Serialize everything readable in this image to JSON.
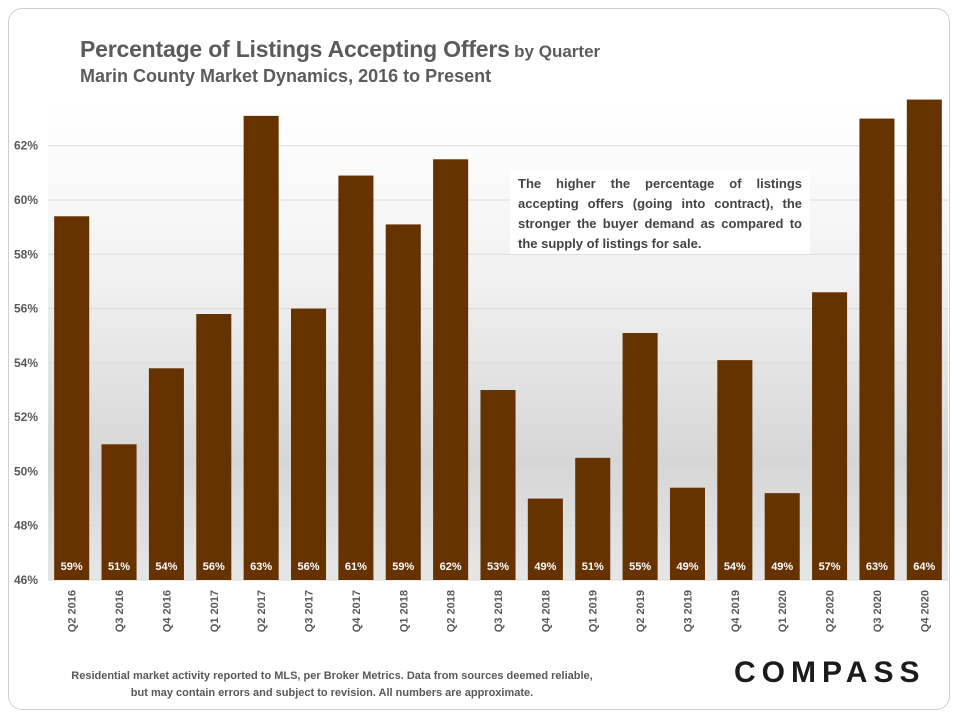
{
  "header": {
    "title": "Percentage of Listings Accepting Offers",
    "title_suffix": "by Quarter",
    "subtitle": "Marin County Market Dynamics,  2016 to Present"
  },
  "annotation": {
    "text": "The higher the percentage of listings accepting offers (going into contract), the stronger the buyer demand as compared to the supply of listings for sale."
  },
  "footer": {
    "note": "Residential market activity reported to MLS, per Broker Metrics.  Data from sources deemed reliable, but may contain errors and subject to revision.  All numbers are approximate.",
    "logo": "COMPASS"
  },
  "colors": {
    "bar": "#663300",
    "grid": "#d9d9d9",
    "axis_text": "#595959",
    "label_text": "#ffffff"
  },
  "chart_data": {
    "type": "bar",
    "title": "Percentage of Listings Accepting Offers by Quarter",
    "subtitle": "Marin County Market Dynamics,  2016 to Present",
    "xlabel": "",
    "ylabel": "",
    "ylim": [
      46,
      63.5
    ],
    "yticks": [
      "46%",
      "48%",
      "50%",
      "52%",
      "54%",
      "56%",
      "58%",
      "60%",
      "62%"
    ],
    "ytick_values": [
      46,
      48,
      50,
      52,
      54,
      56,
      58,
      60,
      62
    ],
    "grid": true,
    "legend": "none",
    "categories": [
      "Q2 2016",
      "Q3 2016",
      "Q4 2016",
      "Q1 2017",
      "Q2 2017",
      "Q3 2017",
      "Q4 2017",
      "Q1 2018",
      "Q2 2018",
      "Q3 2018",
      "Q4 2018",
      "Q1 2019",
      "Q2 2019",
      "Q3 2019",
      "Q4 2019",
      "Q1 2020",
      "Q2 2020",
      "Q3 2020",
      "Q4 2020"
    ],
    "values": [
      59.4,
      51.0,
      53.8,
      55.8,
      63.1,
      56.0,
      60.9,
      59.1,
      61.5,
      53.0,
      49.0,
      50.5,
      55.1,
      49.4,
      54.1,
      49.2,
      56.6,
      63.0,
      63.7
    ],
    "data_labels": [
      "59%",
      "51%",
      "54%",
      "56%",
      "63%",
      "56%",
      "61%",
      "59%",
      "62%",
      "53%",
      "49%",
      "51%",
      "55%",
      "49%",
      "54%",
      "49%",
      "57%",
      "63%",
      "64%"
    ]
  }
}
